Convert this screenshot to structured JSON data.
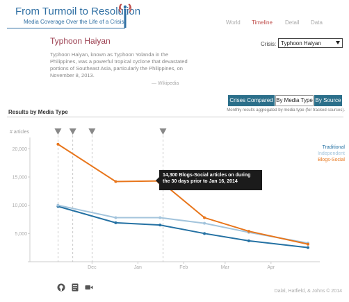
{
  "header": {
    "title": "From Turmoil to Resolution",
    "subtitle": "Media Coverage Over the Life of a Crisis",
    "nav": [
      "World",
      "Timeline",
      "Detail",
      "Data"
    ],
    "active_nav": "Timeline"
  },
  "crisis": {
    "title": "Typhoon Haiyan",
    "description": "Typhoon Haiyan, known as Typhoon Yolanda in the Philippines, was a powerful tropical cyclone that devastated portions of Southeast Asia, particularly the Philippines, on November 8, 2013.",
    "source": "— Wikipedia",
    "select_label": "Crisis:",
    "select_value": "Typhoon Haiyan"
  },
  "tabs": {
    "items": [
      "Crises Compared",
      "By Media Type",
      "By Source"
    ],
    "active": "By Media Type",
    "note": "Monthly results aggregated by media type (for tracked sources)."
  },
  "section": {
    "title": "Results by Media Type"
  },
  "tooltip": {
    "text": "14,300 Blogs-Social articles on during the 30 days prior to Jan 16, 2014"
  },
  "icons": [
    "github-icon",
    "document-icon",
    "video-icon"
  ],
  "footer": {
    "credit": "Dalal, Hatfield, & Johns © 2014"
  },
  "colors": {
    "traditional": "#2471a3",
    "independent": "#a3c4dc",
    "blogs_social": "#e8761c",
    "accent": "#2b6f8a",
    "crisis_title": "#9b3e4f"
  },
  "chart_data": {
    "type": "line",
    "ylabel": "# articles",
    "xlabel": "",
    "ylim": [
      0,
      22000
    ],
    "y_ticks": [
      0,
      5000,
      10000,
      15000,
      20000
    ],
    "y_tick_labels": [
      "",
      "5,000",
      "10,000",
      "15,000",
      "20,000"
    ],
    "x_range": [
      "2013-10-20",
      "2014-05-04"
    ],
    "x_ticks": [
      "2013-12-01",
      "2014-01-01",
      "2014-02-01",
      "2014-03-01",
      "2014-04-01"
    ],
    "x_tick_labels": [
      "Dec",
      "Jan",
      "Feb",
      "Mar",
      "Apr"
    ],
    "event_markers": [
      "2013-11-08",
      "2013-11-18",
      "2013-12-01",
      "2014-01-18"
    ],
    "legend_position": "right",
    "grid": false,
    "x": [
      "2013-11-08",
      "2013-12-17",
      "2014-01-16",
      "2014-02-15",
      "2014-03-17",
      "2014-04-26"
    ],
    "series": [
      {
        "name": "Traditional",
        "color": "#2471a3",
        "values": [
          9800,
          6900,
          6500,
          5000,
          3700,
          2500
        ]
      },
      {
        "name": "Independent",
        "color": "#a3c4dc",
        "values": [
          10000,
          7800,
          7800,
          6800,
          5200,
          3300
        ]
      },
      {
        "name": "Blogs-Social",
        "color": "#e8761c",
        "values": [
          20800,
          14200,
          14300,
          7800,
          5400,
          3100
        ]
      }
    ],
    "highlight": {
      "series": "Blogs-Social",
      "x": "2014-01-16",
      "value": 14300
    }
  }
}
